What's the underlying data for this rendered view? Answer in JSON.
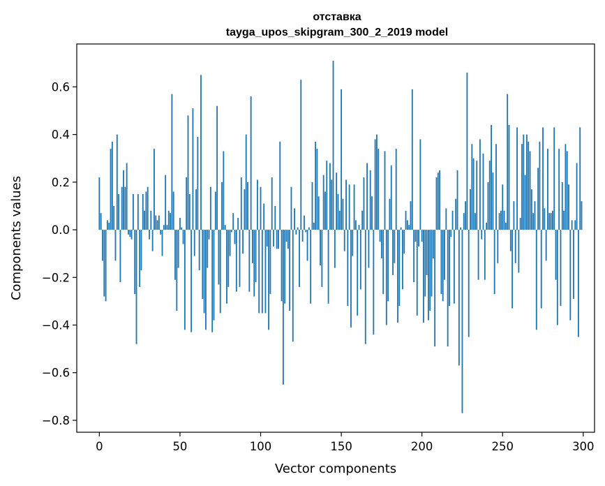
{
  "chart_data": {
    "type": "bar",
    "title": "отставка",
    "subtitle": "tayga_upos_skipgram_300_2_2019 model",
    "xlabel": "Vector components",
    "ylabel": "Components values",
    "xlim": [
      -14,
      307
    ],
    "ylim": [
      -0.85,
      0.78
    ],
    "xticks": [
      0,
      50,
      100,
      150,
      200,
      250,
      300
    ],
    "yticks": [
      -0.8,
      -0.6,
      -0.4,
      -0.2,
      0.0,
      0.2,
      0.4,
      0.6
    ],
    "ytick_labels": [
      "−0.8",
      "−0.6",
      "−0.4",
      "−0.2",
      "0.0",
      "0.2",
      "0.4",
      "0.6"
    ],
    "bar_color": "#1f77b4",
    "grid": false,
    "legend": "none",
    "x": [
      0,
      1,
      2,
      3,
      4,
      5,
      6,
      7,
      8,
      9,
      10,
      11,
      12,
      13,
      14,
      15,
      16,
      17,
      18,
      19,
      20,
      21,
      22,
      23,
      24,
      25,
      26,
      27,
      28,
      29,
      30,
      31,
      32,
      33,
      34,
      35,
      36,
      37,
      38,
      39,
      40,
      41,
      42,
      43,
      44,
      45,
      46,
      47,
      48,
      49,
      50,
      51,
      52,
      53,
      54,
      55,
      56,
      57,
      58,
      59,
      60,
      61,
      62,
      63,
      64,
      65,
      66,
      67,
      68,
      69,
      70,
      71,
      72,
      73,
      74,
      75,
      76,
      77,
      78,
      79,
      80,
      81,
      82,
      83,
      84,
      85,
      86,
      87,
      88,
      89,
      90,
      91,
      92,
      93,
      94,
      95,
      96,
      97,
      98,
      99,
      100,
      101,
      102,
      103,
      104,
      105,
      106,
      107,
      108,
      109,
      110,
      111,
      112,
      113,
      114,
      115,
      116,
      117,
      118,
      119,
      120,
      121,
      122,
      123,
      124,
      125,
      126,
      127,
      128,
      129,
      130,
      131,
      132,
      133,
      134,
      135,
      136,
      137,
      138,
      139,
      140,
      141,
      142,
      143,
      144,
      145,
      146,
      147,
      148,
      149,
      150,
      151,
      152,
      153,
      154,
      155,
      156,
      157,
      158,
      159,
      160,
      161,
      162,
      163,
      164,
      165,
      166,
      167,
      168,
      169,
      170,
      171,
      172,
      173,
      174,
      175,
      176,
      177,
      178,
      179,
      180,
      181,
      182,
      183,
      184,
      185,
      186,
      187,
      188,
      189,
      190,
      191,
      192,
      193,
      194,
      195,
      196,
      197,
      198,
      199,
      200,
      201,
      202,
      203,
      204,
      205,
      206,
      207,
      208,
      209,
      210,
      211,
      212,
      213,
      214,
      215,
      216,
      217,
      218,
      219,
      220,
      221,
      222,
      223,
      224,
      225,
      226,
      227,
      228,
      229,
      230,
      231,
      232,
      233,
      234,
      235,
      236,
      237,
      238,
      239,
      240,
      241,
      242,
      243,
      244,
      245,
      246,
      247,
      248,
      249,
      250,
      251,
      252,
      253,
      254,
      255,
      256,
      257,
      258,
      259,
      260,
      261,
      262,
      263,
      264,
      265,
      266,
      267,
      268,
      269,
      270,
      271,
      272,
      273,
      274,
      275,
      276,
      277,
      278,
      279,
      280,
      281,
      282,
      283,
      284,
      285,
      286,
      287,
      288,
      289,
      290,
      291,
      292,
      293,
      294,
      295,
      296,
      297,
      298,
      299
    ],
    "values": [
      0.22,
      0.07,
      -0.13,
      -0.28,
      -0.3,
      0.04,
      0.03,
      0.34,
      0.37,
      0.1,
      -0.13,
      0.4,
      0.15,
      -0.22,
      0.18,
      0.25,
      0.18,
      0.28,
      -0.02,
      -0.03,
      -0.04,
      0.15,
      -0.27,
      -0.48,
      0.15,
      -0.24,
      -0.17,
      0.15,
      0.08,
      0.16,
      0.18,
      -0.04,
      0.08,
      -0.09,
      0.34,
      0.06,
      0.04,
      0.06,
      -0.02,
      -0.11,
      0.02,
      0.23,
      0.02,
      0.08,
      0.07,
      0.57,
      0.16,
      -0.21,
      -0.34,
      -0.16,
      0.05,
      0.01,
      -0.06,
      -0.42,
      0.22,
      0.48,
      0.15,
      -0.43,
      0.51,
      -0.11,
      0.17,
      0.39,
      -0.17,
      0.65,
      -0.29,
      -0.35,
      -0.42,
      -0.16,
      -0.04,
      0.18,
      -0.43,
      -0.38,
      0.16,
      0.52,
      -0.23,
      -0.35,
      0.2,
      0.33,
      0.02,
      -0.31,
      -0.24,
      -0.11,
      -0.01,
      0.07,
      -0.06,
      -0.26,
      0.05,
      -0.24,
      0.22,
      -0.1,
      0.17,
      0.4,
      0.2,
      -0.26,
      0.56,
      -0.14,
      -0.28,
      -0.22,
      0.21,
      -0.35,
      0.18,
      -0.35,
      0.11,
      -0.35,
      -0.07,
      -0.42,
      -0.27,
      0.22,
      -0.07,
      0.1,
      -0.08,
      -0.08,
      0.37,
      -0.3,
      -0.65,
      -0.31,
      -0.05,
      -0.08,
      -0.34,
      0.18,
      -0.47,
      0.09,
      -0.02,
      0.01,
      -0.24,
      0.63,
      -0.05,
      0.06,
      -0.01,
      -0.13,
      0.01,
      -0.31,
      0.2,
      0.03,
      0.37,
      0.34,
      0.14,
      -0.15,
      -0.24,
      0.23,
      0.16,
      0.29,
      -0.31,
      0.28,
      0.21,
      0.71,
      -0.16,
      0.24,
      0.15,
      0.08,
      0.59,
      0.13,
      -0.09,
      0.21,
      -0.32,
      0.19,
      -0.41,
      -0.11,
      0.19,
      0.04,
      -0.36,
      0.02,
      -0.25,
      0.08,
      0.22,
      -0.48,
      0.28,
      -0.16,
      0.25,
      0.14,
      -0.44,
      0.38,
      0.4,
      0.34,
      -0.05,
      -0.12,
      -0.27,
      0.33,
      -0.4,
      -0.3,
      0.13,
      0.27,
      -0.19,
      -0.14,
      0.34,
      -0.39,
      -0.32,
      0.01,
      -0.25,
      -0.1,
      0.08,
      0.04,
      0.02,
      0.12,
      0.59,
      -0.22,
      -0.05,
      -0.36,
      -0.07,
      0.38,
      -0.05,
      -0.39,
      -0.28,
      -0.19,
      -0.38,
      -0.34,
      -0.28,
      -0.12,
      -0.49,
      0.22,
      0.24,
      0.25,
      -0.27,
      -0.3,
      -0.21,
      0.09,
      -0.49,
      -0.32,
      -0.03,
      0.08,
      -0.31,
      0.13,
      0.25,
      -0.57,
      0.01,
      -0.77,
      0.07,
      0.12,
      0.66,
      -0.45,
      0.17,
      0.36,
      0.3,
      0.07,
      0.29,
      -0.21,
      0.38,
      -0.04,
      0.32,
      -0.21,
      0.03,
      0.2,
      0.29,
      0.44,
      0.24,
      -0.27,
      0.36,
      -0.14,
      0.07,
      0.08,
      0.19,
      0.08,
      0.03,
      0.57,
      0.44,
      -0.09,
      -0.33,
      0.12,
      -0.14,
      0.43,
      -0.18,
      0.05,
      0.36,
      0.4,
      0.23,
      0.4,
      0.37,
      0.33,
      0.17,
      0.07,
      0.12,
      -0.42,
      0.26,
      0.37,
      -0.33,
      0.43,
      0.09,
      -0.13,
      0.34,
      0.07,
      0.07,
      0.08,
      0.43,
      -0.21,
      -0.4,
      0.34,
      -0.32,
      0.2,
      0.08,
      0.36,
      0.33,
      0.19,
      -0.38,
      0.04,
      -0.29,
      0.04,
      0.28,
      -0.45,
      0.43,
      0.12
    ]
  }
}
